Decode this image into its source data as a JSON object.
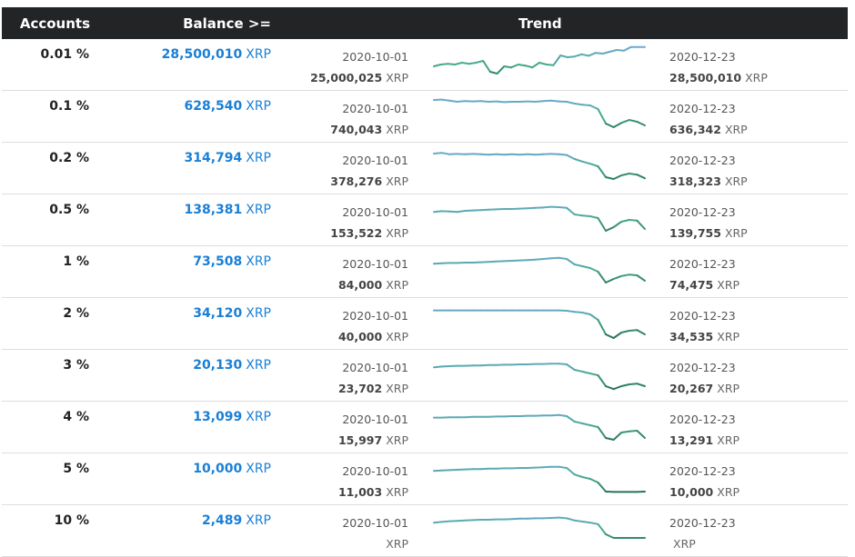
{
  "header": {
    "accounts": "Accounts",
    "balance": "Balance >=",
    "trend": "Trend"
  },
  "unit": "XRP",
  "rows": [
    {
      "pct": "0.01 %",
      "balance": "28,500,010",
      "start_date": "2020-10-01",
      "start_value": "25,000,025",
      "end_date": "2020-12-23",
      "end_value": "28,500,010",
      "trend": [
        0.45,
        0.5,
        0.52,
        0.5,
        0.55,
        0.52,
        0.55,
        0.6,
        0.3,
        0.25,
        0.45,
        0.42,
        0.5,
        0.47,
        0.42,
        0.55,
        0.5,
        0.48,
        0.75,
        0.7,
        0.72,
        0.78,
        0.74,
        0.82,
        0.8,
        0.85,
        0.9,
        0.88,
        0.98,
        0.98,
        0.98
      ]
    },
    {
      "pct": "0.1 %",
      "balance": "628,540",
      "start_date": "2020-10-01",
      "start_value": "740,043",
      "end_date": "2020-12-23",
      "end_value": "636,342",
      "trend": [
        0.95,
        0.96,
        0.93,
        0.9,
        0.92,
        0.91,
        0.92,
        0.9,
        0.91,
        0.89,
        0.9,
        0.9,
        0.91,
        0.9,
        0.92,
        0.93,
        0.91,
        0.9,
        0.85,
        0.82,
        0.8,
        0.7,
        0.3,
        0.2,
        0.32,
        0.4,
        0.35,
        0.25
      ]
    },
    {
      "pct": "0.2 %",
      "balance": "314,794",
      "start_date": "2020-10-01",
      "start_value": "378,276",
      "end_date": "2020-12-23",
      "end_value": "318,323",
      "trend": [
        0.9,
        0.92,
        0.88,
        0.89,
        0.88,
        0.89,
        0.88,
        0.87,
        0.88,
        0.87,
        0.88,
        0.87,
        0.88,
        0.87,
        0.88,
        0.89,
        0.88,
        0.86,
        0.75,
        0.68,
        0.62,
        0.55,
        0.25,
        0.2,
        0.3,
        0.35,
        0.32,
        0.22
      ]
    },
    {
      "pct": "0.5 %",
      "balance": "138,381",
      "start_date": "2020-10-01",
      "start_value": "153,522",
      "end_date": "2020-12-23",
      "end_value": "139,755",
      "trend": [
        0.72,
        0.74,
        0.73,
        0.72,
        0.75,
        0.76,
        0.77,
        0.78,
        0.79,
        0.8,
        0.8,
        0.81,
        0.82,
        0.83,
        0.84,
        0.86,
        0.85,
        0.83,
        0.65,
        0.62,
        0.6,
        0.55,
        0.2,
        0.3,
        0.45,
        0.5,
        0.48,
        0.25
      ]
    },
    {
      "pct": "1 %",
      "balance": "73,508",
      "start_date": "2020-10-01",
      "start_value": "84,000",
      "end_date": "2020-12-23",
      "end_value": "74,475",
      "trend": [
        0.72,
        0.73,
        0.74,
        0.74,
        0.75,
        0.75,
        0.76,
        0.77,
        0.78,
        0.79,
        0.8,
        0.81,
        0.82,
        0.83,
        0.85,
        0.87,
        0.88,
        0.85,
        0.7,
        0.65,
        0.6,
        0.5,
        0.2,
        0.3,
        0.38,
        0.42,
        0.4,
        0.25
      ]
    },
    {
      "pct": "2 %",
      "balance": "34,120",
      "start_date": "2020-10-01",
      "start_value": "40,000",
      "end_date": "2020-12-23",
      "end_value": "34,535",
      "trend": [
        0.86,
        0.86,
        0.86,
        0.86,
        0.86,
        0.86,
        0.86,
        0.86,
        0.86,
        0.86,
        0.86,
        0.86,
        0.86,
        0.86,
        0.86,
        0.86,
        0.86,
        0.85,
        0.82,
        0.8,
        0.75,
        0.6,
        0.2,
        0.1,
        0.25,
        0.3,
        0.32,
        0.2
      ]
    },
    {
      "pct": "3 %",
      "balance": "20,130",
      "start_date": "2020-10-01",
      "start_value": "23,702",
      "end_date": "2020-12-23",
      "end_value": "20,267",
      "trend": [
        0.72,
        0.74,
        0.75,
        0.76,
        0.76,
        0.77,
        0.77,
        0.78,
        0.78,
        0.79,
        0.79,
        0.8,
        0.8,
        0.81,
        0.81,
        0.82,
        0.82,
        0.8,
        0.65,
        0.6,
        0.55,
        0.5,
        0.2,
        0.12,
        0.2,
        0.25,
        0.27,
        0.2
      ]
    },
    {
      "pct": "4 %",
      "balance": "13,099",
      "start_date": "2020-10-01",
      "start_value": "15,997",
      "end_date": "2020-12-23",
      "end_value": "13,291",
      "trend": [
        0.76,
        0.76,
        0.77,
        0.77,
        0.77,
        0.78,
        0.78,
        0.78,
        0.79,
        0.79,
        0.8,
        0.8,
        0.81,
        0.81,
        0.82,
        0.82,
        0.83,
        0.8,
        0.65,
        0.6,
        0.55,
        0.5,
        0.2,
        0.15,
        0.35,
        0.38,
        0.4,
        0.2
      ]
    },
    {
      "pct": "5 %",
      "balance": "10,000",
      "start_date": "2020-10-01",
      "start_value": "11,003",
      "end_date": "2020-12-23",
      "end_value": "10,000",
      "trend": [
        0.72,
        0.73,
        0.74,
        0.75,
        0.76,
        0.77,
        0.77,
        0.78,
        0.78,
        0.79,
        0.79,
        0.8,
        0.8,
        0.81,
        0.82,
        0.83,
        0.83,
        0.8,
        0.62,
        0.55,
        0.5,
        0.4,
        0.15,
        0.14,
        0.14,
        0.14,
        0.14,
        0.15
      ]
    },
    {
      "pct": "10 %",
      "balance": "2,489",
      "start_date": "2020-10-01",
      "start_value": "",
      "end_date": "2020-12-23",
      "end_value": "",
      "trend": [
        0.72,
        0.74,
        0.76,
        0.77,
        0.78,
        0.79,
        0.8,
        0.8,
        0.81,
        0.81,
        0.82,
        0.83,
        0.83,
        0.84,
        0.84,
        0.85,
        0.86,
        0.84,
        0.78,
        0.75,
        0.72,
        0.68,
        0.4,
        0.3,
        0.3,
        0.3,
        0.3,
        0.3
      ]
    }
  ]
}
